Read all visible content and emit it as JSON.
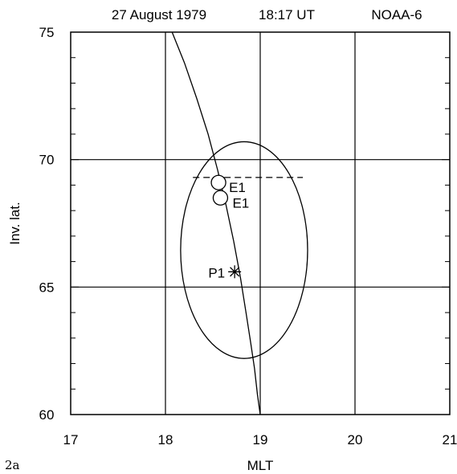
{
  "chart_data": {
    "type": "scatter",
    "header": {
      "date": "27 August 1979",
      "time": "18:17 UT",
      "satellite": "NOAA-6"
    },
    "figure_label": "2a",
    "xlabel": "MLT",
    "ylabel": "Inv. lat.",
    "xlim": [
      17,
      21
    ],
    "ylim": [
      60,
      75
    ],
    "x_ticks": [
      17,
      18,
      19,
      20,
      21
    ],
    "y_ticks": [
      60,
      65,
      70,
      75
    ],
    "grid": true,
    "track": {
      "x": [
        18.07,
        18.2,
        18.33,
        18.45,
        18.55,
        18.64,
        18.72,
        18.79,
        18.85,
        18.9,
        18.94,
        18.97,
        19.0
      ],
      "y": [
        75.0,
        73.8,
        72.4,
        71.0,
        69.6,
        68.2,
        66.8,
        65.4,
        64.0,
        62.8,
        61.8,
        60.8,
        60.0
      ]
    },
    "ellipse": {
      "cx": 18.83,
      "cy": 66.45,
      "rx": 0.67,
      "ry": 4.25
    },
    "dashed_line": {
      "x": [
        18.29,
        19.45
      ],
      "y": [
        69.3,
        69.3
      ]
    },
    "points": [
      {
        "label": "E1",
        "marker": "circle",
        "x": 18.56,
        "y": 69.1
      },
      {
        "label": "E1",
        "marker": "circle",
        "x": 18.58,
        "y": 68.5
      },
      {
        "label": "P1",
        "marker": "asterisk",
        "x": 18.73,
        "y": 65.6
      }
    ]
  }
}
